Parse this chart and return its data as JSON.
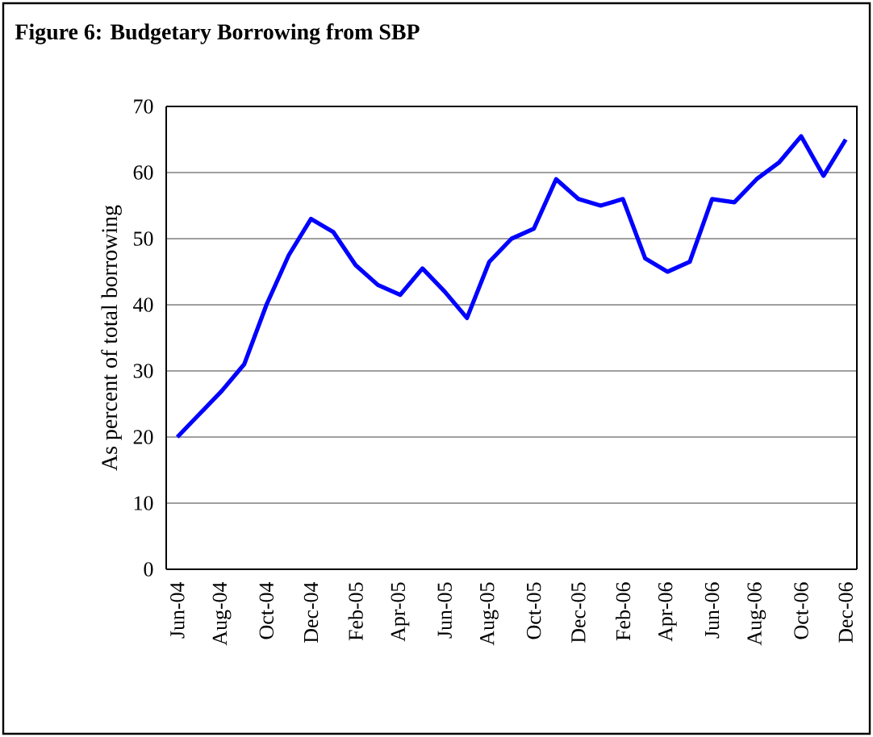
{
  "chart_data": {
    "type": "line",
    "title": "Figure 6: Budgetary Borrowing from SBP",
    "ylabel": "As percent of total borrowing",
    "categories": [
      "Jun-04",
      null,
      "Aug-04",
      null,
      "Oct-04",
      null,
      "Dec-04",
      null,
      "Feb-05",
      null,
      "Apr-05",
      null,
      "Jun-05",
      null,
      "Aug-05",
      null,
      "Oct-05",
      null,
      "Dec-05",
      null,
      "Feb-06",
      null,
      "Apr-06",
      null,
      "Jun-06",
      null,
      "Aug-06",
      null,
      "Oct-06",
      null,
      "Dec-06"
    ],
    "series": [
      {
        "color": "#0000ff",
        "values": [
          20,
          23.5,
          27,
          31,
          40,
          47.5,
          53,
          51,
          46,
          43,
          41.5,
          45.5,
          42,
          38,
          46.5,
          50,
          51.5,
          59,
          56,
          55,
          56,
          47,
          45,
          46.5,
          56,
          55.5,
          59,
          61.5,
          65.5,
          59.5,
          65
        ]
      }
    ],
    "ylim": [
      0,
      70
    ],
    "yticks": [
      0,
      10,
      20,
      30,
      40,
      50,
      60,
      70
    ],
    "grid": "y"
  }
}
